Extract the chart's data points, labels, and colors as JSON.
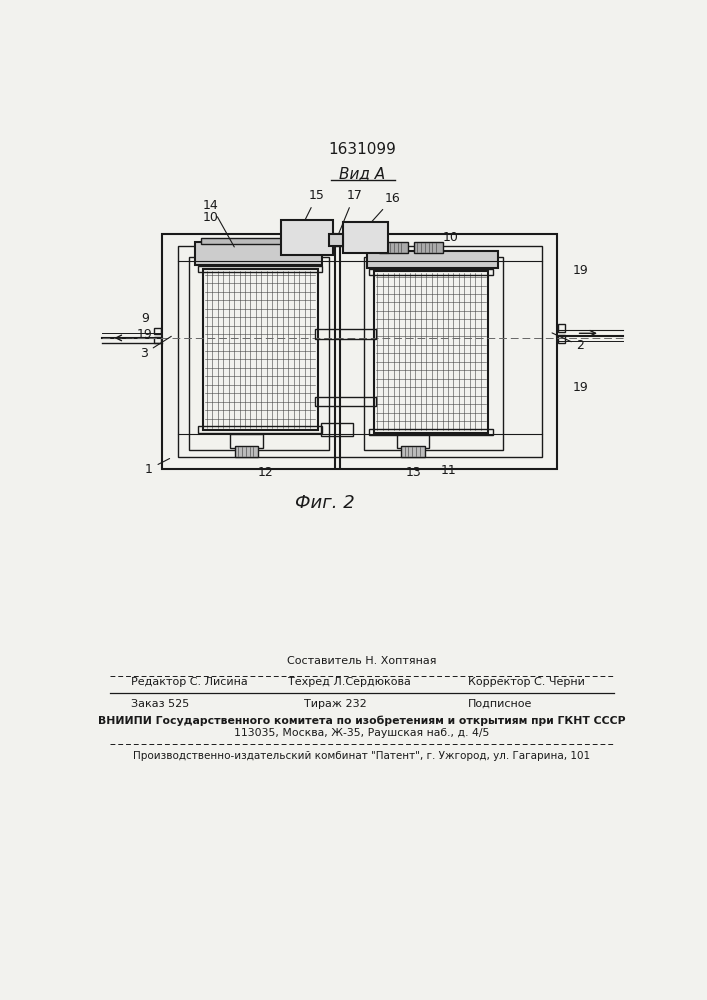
{
  "patent_number": "1631099",
  "view_label": "Вид A",
  "fig_label": "Фиг. 2",
  "bg_color": "#f2f2ee",
  "line_color": "#1a1a1a",
  "footer_sostavitel": "Составитель Н. Хоптяная",
  "footer_editor": "Редактор С. Лисина",
  "footer_tehred": "Техред Л.Сердюкова",
  "footer_korrektor": "Корректор С. Черни",
  "footer_zakaz": "Заказ 525",
  "footer_tirazh": "Тираж 232",
  "footer_podpisnoe": "Подписное",
  "footer_vniipи": "ВНИИПИ Государственного комитета по изобретениям и открытиям при ГКНТ СССР",
  "footer_address": "113035, Москва, Ж-35, Раушская наб., д. 4/5",
  "footer_production": "Производственно-издательский комбинат \"Патент\", г. Ужгород, ул. Гагарина, 101"
}
